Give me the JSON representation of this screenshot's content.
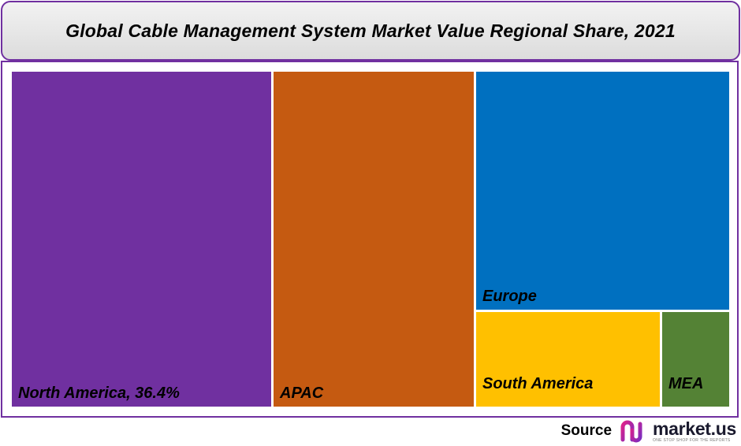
{
  "chart_data": {
    "type": "treemap",
    "title": "Global Cable Management System Market Value Regional Share, 2021",
    "tiles": [
      {
        "name": "North America",
        "label": "North America, 36.4%",
        "value": 36.4,
        "color": "#7030a0"
      },
      {
        "name": "APAC",
        "label": "APAC",
        "color": "#c55a11"
      },
      {
        "name": "Europe",
        "label": "Europe",
        "color": "#0070c0"
      },
      {
        "name": "South America",
        "label": "South America",
        "color": "#ffc000"
      },
      {
        "name": "MEA",
        "label": "MEA",
        "color": "#548235"
      }
    ]
  },
  "footer": {
    "source_label": "Source",
    "logo_text": "market.us",
    "logo_tagline": "ONE STOP SHOP FOR THE REPORTS",
    "logo_icon": "market-us-logo-icon"
  }
}
